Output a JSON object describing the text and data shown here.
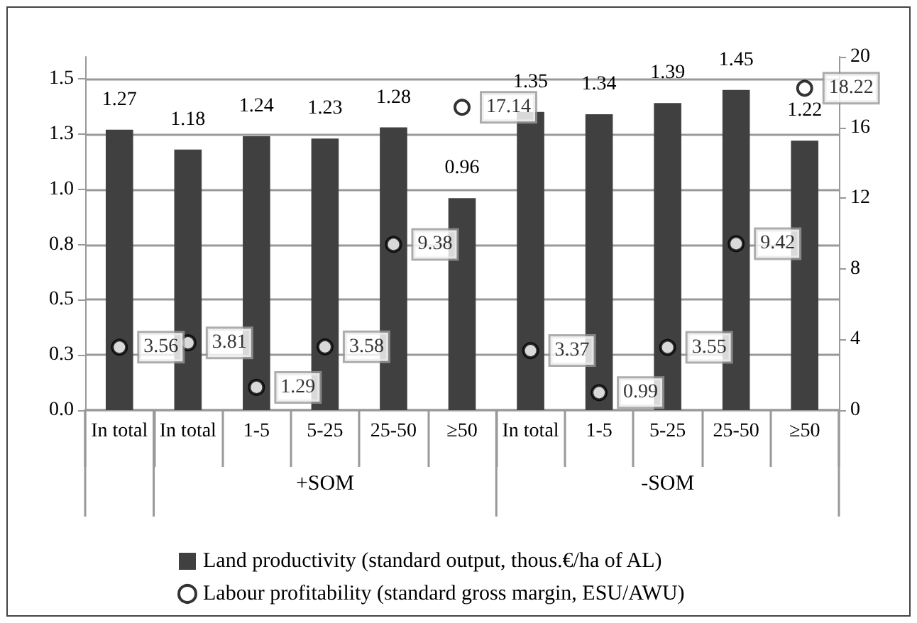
{
  "chart_data": {
    "type": "bar",
    "categories": [
      "In total",
      "In total",
      "1-5",
      "5-25",
      "25-50",
      "≥50",
      "In total",
      "1-5",
      "5-25",
      "25-50",
      "≥50"
    ],
    "series": [
      {
        "name": "Land productivity (standard output, thous.€/ha of AL)",
        "color": "#404040",
        "values": [
          1.27,
          1.18,
          1.24,
          1.23,
          1.28,
          0.96,
          1.35,
          1.34,
          1.39,
          1.45,
          1.22
        ]
      },
      {
        "name": "Labour profitability (standard gross margin, ESU/AWU)",
        "type": "scatter",
        "axis": "y2",
        "color": "#000000",
        "marker": "circle",
        "values": [
          3.56,
          3.81,
          1.29,
          3.58,
          9.38,
          17.14,
          3.37,
          0.99,
          3.55,
          9.42,
          18.22
        ]
      }
    ],
    "ylim": [
      0,
      1.6
    ],
    "yticks": [
      {
        "value": 0,
        "label": "0.0"
      },
      {
        "value": 0.25,
        "label": "0.3"
      },
      {
        "value": 0.5,
        "label": "0.5"
      },
      {
        "value": 0.75,
        "label": "0.8"
      },
      {
        "value": 1,
        "label": "1.0"
      },
      {
        "value": 1.25,
        "label": "1.3"
      },
      {
        "value": 1.5,
        "label": "1.5"
      }
    ],
    "y2lim": [
      0,
      20
    ],
    "y2ticks": [
      0,
      4,
      8,
      12,
      16,
      20
    ],
    "annotations": [
      "+SOM",
      "-SOM"
    ],
    "data_labels": true,
    "grid": "y",
    "legend": "bottom"
  }
}
